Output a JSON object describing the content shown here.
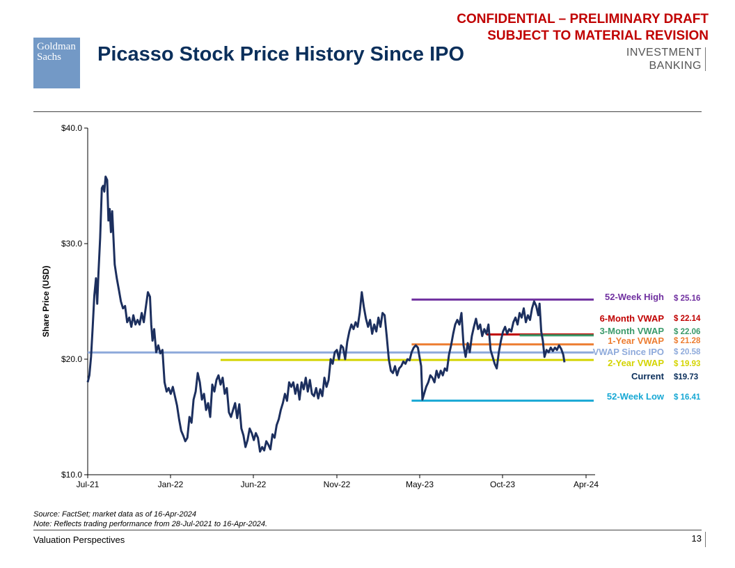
{
  "header": {
    "confidential_line1": "CONFIDENTIAL – PRELIMINARY DRAFT",
    "confidential_line2": "SUBJECT TO MATERIAL REVISION",
    "logo_line1": "Goldman",
    "logo_line2": "Sachs",
    "title": "Picasso Stock Price History Since IPO",
    "division_line1": "INVESTMENT",
    "division_line2": "BANKING"
  },
  "chart_data": {
    "type": "line",
    "title": "",
    "xlabel": "",
    "ylabel": "Share Price (USD)",
    "ylim": [
      10,
      40
    ],
    "y_ticks": [
      "$40.0",
      "$30.0",
      "$20.0",
      "$10.0"
    ],
    "x_ticks": [
      "Jul-21",
      "Jan-22",
      "Jun-22",
      "Nov-22",
      "May-23",
      "Oct-23",
      "Apr-24"
    ],
    "x_range": [
      "28-Jul-2021",
      "16-Apr-2024"
    ],
    "series_color": "#1c2f5e",
    "price_points": [
      [
        0,
        18.0
      ],
      [
        0.04,
        18.6
      ],
      [
        0.08,
        20.2
      ],
      [
        0.12,
        22.8
      ],
      [
        0.16,
        25.5
      ],
      [
        0.2,
        27.0
      ],
      [
        0.23,
        24.8
      ],
      [
        0.26,
        27.5
      ],
      [
        0.3,
        30.5
      ],
      [
        0.34,
        34.8
      ],
      [
        0.37,
        35.0
      ],
      [
        0.4,
        34.5
      ],
      [
        0.43,
        35.8
      ],
      [
        0.47,
        35.5
      ],
      [
        0.5,
        32.0
      ],
      [
        0.53,
        33.0
      ],
      [
        0.56,
        31.0
      ],
      [
        0.59,
        32.8
      ],
      [
        0.62,
        30.5
      ],
      [
        0.65,
        28.2
      ],
      [
        0.7,
        27.0
      ],
      [
        0.75,
        26.0
      ],
      [
        0.8,
        25.0
      ],
      [
        0.85,
        24.4
      ],
      [
        0.9,
        24.6
      ],
      [
        0.95,
        23.2
      ],
      [
        1.0,
        23.6
      ],
      [
        1.05,
        22.8
      ],
      [
        1.1,
        23.8
      ],
      [
        1.15,
        23.0
      ],
      [
        1.2,
        23.4
      ],
      [
        1.25,
        23.0
      ],
      [
        1.3,
        24.0
      ],
      [
        1.35,
        23.2
      ],
      [
        1.4,
        24.5
      ],
      [
        1.45,
        25.8
      ],
      [
        1.5,
        25.4
      ],
      [
        1.53,
        23.0
      ],
      [
        1.56,
        21.6
      ],
      [
        1.6,
        22.6
      ],
      [
        1.65,
        20.6
      ],
      [
        1.7,
        21.2
      ],
      [
        1.75,
        20.5
      ],
      [
        1.8,
        20.8
      ],
      [
        1.85,
        18.0
      ],
      [
        1.9,
        17.2
      ],
      [
        1.95,
        17.5
      ],
      [
        2.0,
        17.0
      ],
      [
        2.05,
        17.6
      ],
      [
        2.1,
        16.8
      ],
      [
        2.15,
        16.0
      ],
      [
        2.2,
        14.8
      ],
      [
        2.25,
        13.8
      ],
      [
        2.3,
        13.4
      ],
      [
        2.35,
        12.9
      ],
      [
        2.4,
        13.2
      ],
      [
        2.45,
        15.0
      ],
      [
        2.5,
        14.5
      ],
      [
        2.55,
        16.5
      ],
      [
        2.6,
        17.2
      ],
      [
        2.65,
        18.8
      ],
      [
        2.7,
        18.0
      ],
      [
        2.75,
        16.5
      ],
      [
        2.8,
        17.0
      ],
      [
        2.85,
        15.6
      ],
      [
        2.9,
        16.2
      ],
      [
        2.95,
        15.0
      ],
      [
        3.0,
        17.8
      ],
      [
        3.05,
        17.2
      ],
      [
        3.1,
        18.2
      ],
      [
        3.15,
        18.6
      ],
      [
        3.2,
        17.8
      ],
      [
        3.25,
        18.4
      ],
      [
        3.3,
        17.0
      ],
      [
        3.35,
        17.5
      ],
      [
        3.4,
        15.4
      ],
      [
        3.45,
        15.0
      ],
      [
        3.5,
        15.6
      ],
      [
        3.55,
        16.2
      ],
      [
        3.6,
        14.9
      ],
      [
        3.65,
        16.1
      ],
      [
        3.7,
        14.0
      ],
      [
        3.75,
        13.4
      ],
      [
        3.8,
        12.4
      ],
      [
        3.85,
        13.0
      ],
      [
        3.9,
        14.0
      ],
      [
        3.95,
        13.6
      ],
      [
        4.0,
        13.0
      ],
      [
        4.05,
        13.6
      ],
      [
        4.1,
        13.2
      ],
      [
        4.15,
        12.0
      ],
      [
        4.2,
        12.4
      ],
      [
        4.25,
        12.1
      ],
      [
        4.3,
        12.9
      ],
      [
        4.35,
        12.6
      ],
      [
        4.4,
        12.2
      ],
      [
        4.45,
        13.5
      ],
      [
        4.5,
        13.2
      ],
      [
        4.55,
        14.3
      ],
      [
        4.6,
        14.8
      ],
      [
        4.65,
        15.6
      ],
      [
        4.7,
        16.2
      ],
      [
        4.75,
        17.0
      ],
      [
        4.8,
        16.4
      ],
      [
        4.85,
        18.0
      ],
      [
        4.9,
        17.6
      ],
      [
        4.95,
        18.0
      ],
      [
        5.0,
        17.0
      ],
      [
        5.05,
        17.8
      ],
      [
        5.1,
        16.5
      ],
      [
        5.15,
        18.0
      ],
      [
        5.2,
        17.4
      ],
      [
        5.25,
        18.4
      ],
      [
        5.3,
        17.2
      ],
      [
        5.35,
        18.2
      ],
      [
        5.4,
        17.0
      ],
      [
        5.45,
        16.8
      ],
      [
        5.5,
        17.5
      ],
      [
        5.55,
        16.6
      ],
      [
        5.6,
        17.4
      ],
      [
        5.65,
        16.8
      ],
      [
        5.7,
        18.4
      ],
      [
        5.75,
        17.6
      ],
      [
        5.8,
        18.2
      ],
      [
        5.85,
        20.0
      ],
      [
        5.9,
        19.6
      ],
      [
        5.95,
        20.6
      ],
      [
        6.0,
        20.8
      ],
      [
        6.05,
        20.0
      ],
      [
        6.1,
        21.2
      ],
      [
        6.15,
        21.0
      ],
      [
        6.2,
        20.0
      ],
      [
        6.25,
        21.5
      ],
      [
        6.3,
        22.4
      ],
      [
        6.35,
        23.0
      ],
      [
        6.4,
        22.6
      ],
      [
        6.45,
        23.2
      ],
      [
        6.5,
        22.8
      ],
      [
        6.55,
        24.0
      ],
      [
        6.6,
        25.8
      ],
      [
        6.65,
        24.5
      ],
      [
        6.7,
        23.5
      ],
      [
        6.75,
        22.8
      ],
      [
        6.8,
        23.4
      ],
      [
        6.85,
        22.2
      ],
      [
        6.9,
        23.0
      ],
      [
        6.95,
        22.4
      ],
      [
        7.0,
        23.6
      ],
      [
        7.05,
        22.8
      ],
      [
        7.1,
        24.0
      ],
      [
        7.15,
        23.8
      ],
      [
        7.2,
        22.0
      ],
      [
        7.25,
        20.0
      ],
      [
        7.3,
        19.0
      ],
      [
        7.35,
        18.8
      ],
      [
        7.4,
        19.4
      ],
      [
        7.45,
        18.6
      ],
      [
        7.5,
        19.2
      ],
      [
        7.55,
        19.4
      ],
      [
        7.6,
        19.8
      ],
      [
        7.65,
        19.6
      ],
      [
        7.7,
        20.0
      ],
      [
        7.75,
        19.9
      ],
      [
        7.8,
        20.6
      ],
      [
        7.85,
        21.0
      ],
      [
        7.9,
        21.2
      ],
      [
        7.95,
        21.0
      ],
      [
        8.0,
        20.0
      ],
      [
        8.03,
        19.4
      ],
      [
        8.06,
        16.5
      ],
      [
        8.1,
        17.0
      ],
      [
        8.15,
        17.6
      ],
      [
        8.2,
        18.0
      ],
      [
        8.25,
        18.6
      ],
      [
        8.3,
        18.4
      ],
      [
        8.35,
        18.0
      ],
      [
        8.4,
        19.0
      ],
      [
        8.45,
        18.4
      ],
      [
        8.5,
        19.0
      ],
      [
        8.55,
        18.6
      ],
      [
        8.6,
        19.2
      ],
      [
        8.65,
        19.0
      ],
      [
        8.7,
        20.4
      ],
      [
        8.75,
        21.2
      ],
      [
        8.8,
        22.2
      ],
      [
        8.85,
        23.0
      ],
      [
        8.9,
        23.4
      ],
      [
        8.95,
        23.0
      ],
      [
        9.0,
        24.0
      ],
      [
        9.05,
        21.2
      ],
      [
        9.1,
        20.2
      ],
      [
        9.15,
        21.4
      ],
      [
        9.2,
        20.6
      ],
      [
        9.25,
        22.0
      ],
      [
        9.3,
        22.8
      ],
      [
        9.35,
        23.5
      ],
      [
        9.4,
        22.6
      ],
      [
        9.45,
        23.0
      ],
      [
        9.5,
        22.0
      ],
      [
        9.55,
        22.6
      ],
      [
        9.6,
        22.2
      ],
      [
        9.65,
        23.0
      ],
      [
        9.7,
        20.8
      ],
      [
        9.75,
        20.2
      ],
      [
        9.8,
        19.6
      ],
      [
        9.85,
        19.2
      ],
      [
        9.9,
        20.6
      ],
      [
        9.95,
        21.6
      ],
      [
        10.0,
        22.4
      ],
      [
        10.05,
        22.8
      ],
      [
        10.1,
        22.2
      ],
      [
        10.15,
        22.6
      ],
      [
        10.2,
        22.4
      ],
      [
        10.25,
        23.2
      ],
      [
        10.3,
        23.6
      ],
      [
        10.35,
        23.0
      ],
      [
        10.4,
        24.0
      ],
      [
        10.45,
        23.6
      ],
      [
        10.5,
        24.4
      ],
      [
        10.55,
        23.2
      ],
      [
        10.6,
        23.8
      ],
      [
        10.65,
        23.4
      ],
      [
        10.7,
        24.4
      ],
      [
        10.75,
        25.0
      ],
      [
        10.8,
        24.6
      ],
      [
        10.85,
        23.8
      ],
      [
        10.88,
        24.8
      ],
      [
        10.92,
        22.4
      ],
      [
        10.96,
        21.6
      ],
      [
        11.0,
        20.2
      ],
      [
        11.05,
        20.8
      ],
      [
        11.1,
        20.6
      ],
      [
        11.15,
        21.0
      ],
      [
        11.2,
        20.7
      ],
      [
        11.25,
        21.0
      ],
      [
        11.3,
        20.8
      ],
      [
        11.35,
        21.2
      ],
      [
        11.4,
        20.9
      ],
      [
        11.45,
        20.4
      ],
      [
        11.48,
        19.73
      ]
    ],
    "reference_lines": [
      {
        "label": "52-Week High",
        "value_label": "$ 25.16",
        "value": 25.16,
        "start": 7.8,
        "color": "#7030a0"
      },
      {
        "label": "6-Month VWAP",
        "value_label": "$ 22.14",
        "value": 22.14,
        "start": 9.6,
        "color": "#c00000"
      },
      {
        "label": "3-Month VWAP",
        "value_label": "$ 22.06",
        "value": 22.06,
        "start": 10.4,
        "color": "#3a9a6a"
      },
      {
        "label": "1-Year VWAP",
        "value_label": "$ 21.28",
        "value": 21.28,
        "start": 7.8,
        "color": "#ed7d31"
      },
      {
        "label": "VWAP Since IPO",
        "value_label": "$ 20.58",
        "value": 20.58,
        "start": 0.0,
        "color": "#8eaadb"
      },
      {
        "label": "2-Year VWAP",
        "value_label": "$ 19.93",
        "value": 19.93,
        "start": 3.2,
        "color": "#d4d400"
      },
      {
        "label": "Current",
        "value_label": "$19.73",
        "value": 19.73,
        "start": null,
        "color": "#0b2f5b"
      },
      {
        "label": "52-Week Low",
        "value_label": "$ 16.41",
        "value": 16.41,
        "start": 7.8,
        "color": "#17a8d4"
      }
    ]
  },
  "footnotes": {
    "source": "Source: FactSet; market data as of 16-Apr-2024",
    "note": "Note: Reflects trading performance from 28-Jul-2021 to 16-Apr-2024."
  },
  "footer": {
    "section": "Valuation Perspectives",
    "page_number": "13"
  }
}
